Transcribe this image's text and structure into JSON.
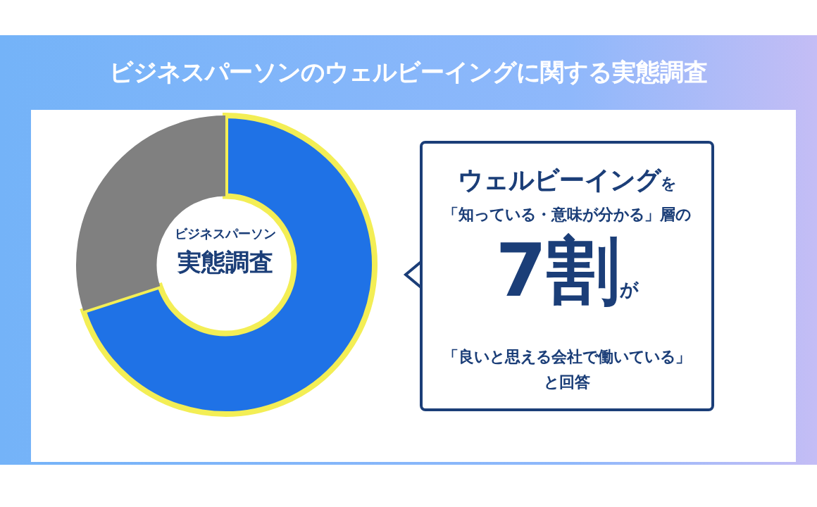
{
  "chart_data": {
    "type": "donut",
    "title": "ビジネスパーソンのウェルビーイングに関する実態調査",
    "categories": [
      null,
      null
    ],
    "values": [
      70,
      30
    ],
    "colors": [
      "#1f72e6",
      "#808080"
    ],
    "legend": false,
    "annotations": [
      "ビジネスパーソン",
      "実態調査",
      "ウェルビーイング",
      "を",
      "「知っている・意味が分かる」層の",
      "7割",
      "が",
      "「良いと思える会社で働いている」",
      "と回答"
    ]
  }
}
